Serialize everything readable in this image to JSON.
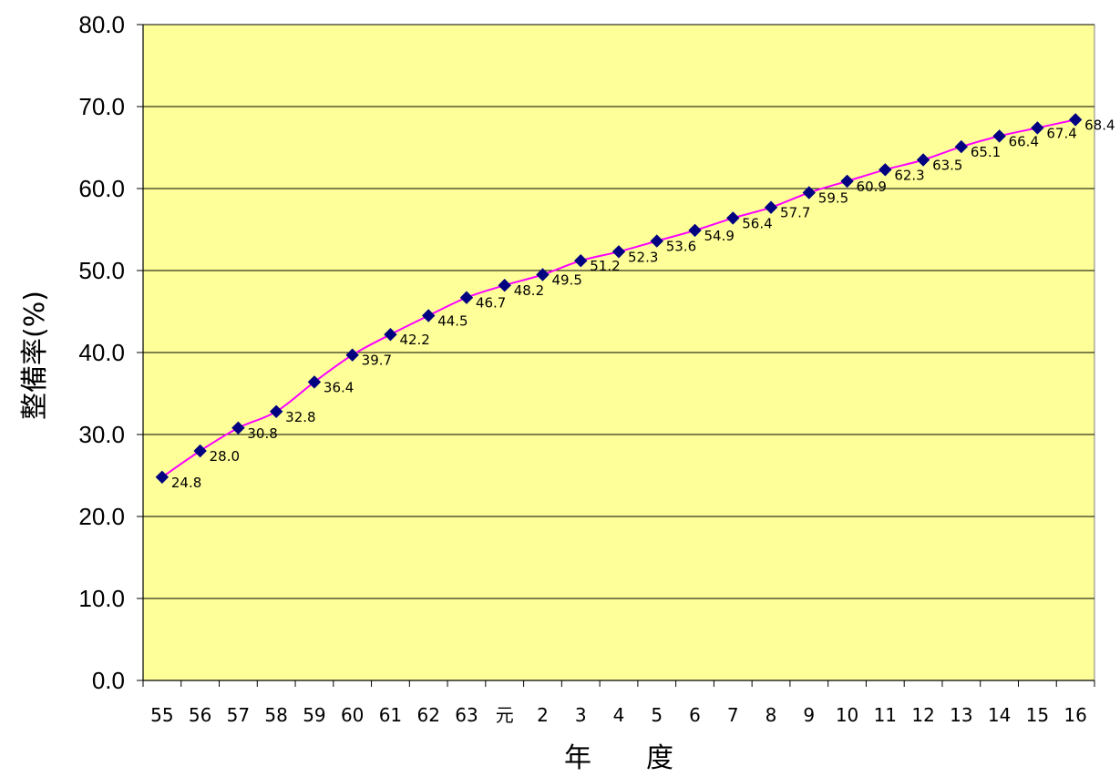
{
  "chart_data": {
    "type": "line",
    "title": "",
    "xlabel": "年　　度",
    "ylabel": "整備率(%)",
    "ylim": [
      0,
      80
    ],
    "yticks": [
      "0.0",
      "10.0",
      "20.0",
      "30.0",
      "40.0",
      "50.0",
      "60.0",
      "70.0",
      "80.0"
    ],
    "grid": true,
    "legend": "none",
    "categories": [
      "55",
      "56",
      "57",
      "58",
      "59",
      "60",
      "61",
      "62",
      "63",
      "元",
      "2",
      "3",
      "4",
      "5",
      "6",
      "7",
      "8",
      "9",
      "10",
      "11",
      "12",
      "13",
      "14",
      "15",
      "16"
    ],
    "series": [
      {
        "values": [
          24.8,
          28.0,
          30.8,
          32.8,
          36.4,
          39.7,
          42.2,
          44.5,
          46.7,
          48.2,
          49.5,
          51.2,
          52.3,
          53.6,
          54.9,
          56.4,
          57.7,
          59.5,
          60.9,
          62.3,
          63.5,
          65.1,
          66.4,
          67.4,
          68.4
        ],
        "labels": [
          "24.8",
          "28.0",
          "30.8",
          "32.8",
          "36.4",
          "39.7",
          "42.2",
          "44.5",
          "46.7",
          "48.2",
          "49.5",
          "51.2",
          "52.3",
          "53.6",
          "54.9",
          "56.4",
          "57.7",
          "59.5",
          "60.9",
          "62.3",
          "63.5",
          "65.1",
          "66.4",
          "67.4",
          "68.4"
        ]
      }
    ],
    "colors": {
      "plot_background": "#ffff99",
      "line": "#ff00ff",
      "marker": "#000080",
      "gridline": "#000000"
    },
    "marker_icon": "diamond-marker"
  }
}
